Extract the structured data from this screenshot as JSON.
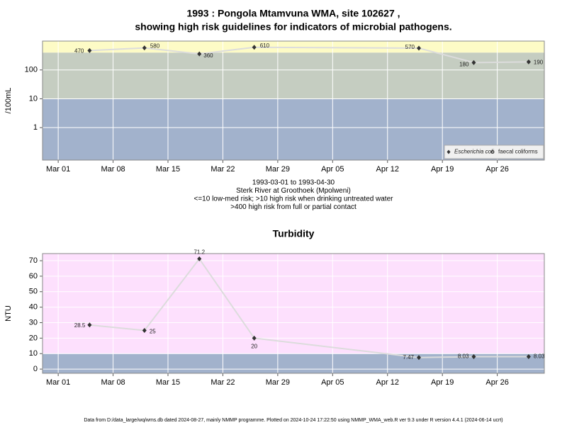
{
  "chart_data": [
    {
      "type": "line",
      "title": [
        "1993 : Pongola Mtamvuna WMA, site 102627 ,",
        "showing high risk guidelines for indicators of microbial pathogens."
      ],
      "ylabel": "/100mL",
      "x": [
        "Mar 05",
        "Mar 12",
        "Mar 19",
        "Mar 26",
        "Apr 16",
        "Apr 23",
        "Apr 30"
      ],
      "series": [
        {
          "name": "Escherichia coli",
          "marker": "diamond",
          "color": "#333333",
          "values": [
            470,
            580,
            360,
            610,
            570,
            180,
            190
          ]
        },
        {
          "name": "faecal coliforms",
          "marker": "circle",
          "color": "#333333",
          "values": [
            null,
            null,
            null,
            null,
            null,
            null,
            null
          ]
        }
      ],
      "line_color": "#dcdcdc",
      "xlim": [
        "Feb 27",
        "May 02"
      ],
      "xticks": [
        "Mar 01",
        "Mar 08",
        "Mar 15",
        "Mar 22",
        "Mar 29",
        "Apr 05",
        "Apr 12",
        "Apr 19",
        "Apr 26"
      ],
      "ylim": [
        0.075,
        1000
      ],
      "yticks": [
        1,
        10,
        100
      ],
      "log_y": true,
      "grid": true,
      "bands": [
        {
          "to": 10,
          "color": "#a2b2cc"
        },
        {
          "from": 10,
          "to": 400,
          "color": "#c5cdc1"
        },
        {
          "from": 400,
          "color": "#fdfbc6"
        }
      ],
      "legend": "lower right",
      "notes": [
        "1993-03-01 to 1993-04-30",
        "Sterk River at Groothoek (Mpolweni)",
        "<=10 low-med risk; >10 high risk when drinking untreated water",
        ">400 high risk from full or partial contact"
      ]
    },
    {
      "type": "line",
      "title": [
        "Turbidity"
      ],
      "ylabel": "NTU",
      "x": [
        "Mar 05",
        "Mar 12",
        "Mar 19",
        "Mar 26",
        "Apr 16",
        "Apr 23",
        "Apr 30"
      ],
      "series": [
        {
          "name": "Turbidity",
          "marker": "diamond",
          "color": "#333333",
          "values": [
            28.5,
            25,
            71.2,
            20,
            7.47,
            8.03,
            8.03
          ]
        }
      ],
      "line_color": "#dcdcdc",
      "xlim": [
        "Feb 27",
        "May 02"
      ],
      "xticks": [
        "Mar 01",
        "Mar 08",
        "Mar 15",
        "Mar 22",
        "Mar 29",
        "Apr 05",
        "Apr 12",
        "Apr 19",
        "Apr 26"
      ],
      "ylim": [
        -2.7,
        74.6
      ],
      "yticks": [
        0,
        10,
        20,
        30,
        40,
        50,
        60,
        70
      ],
      "log_y": false,
      "grid": true,
      "bands": [
        {
          "to": 10,
          "color": "#a2b2cc"
        },
        {
          "from": 10,
          "color": "#fde0fd"
        }
      ]
    }
  ],
  "footer": "Data from D:/data_large/wq/wms.db dated 2024-08-27, mainly NMMP programme. Plotted on 2024-10-24 17:22:50 using NMMP_WMA_web.R ver 9.3 under R version 4.4.1 (2024-06-14 ucrt)"
}
